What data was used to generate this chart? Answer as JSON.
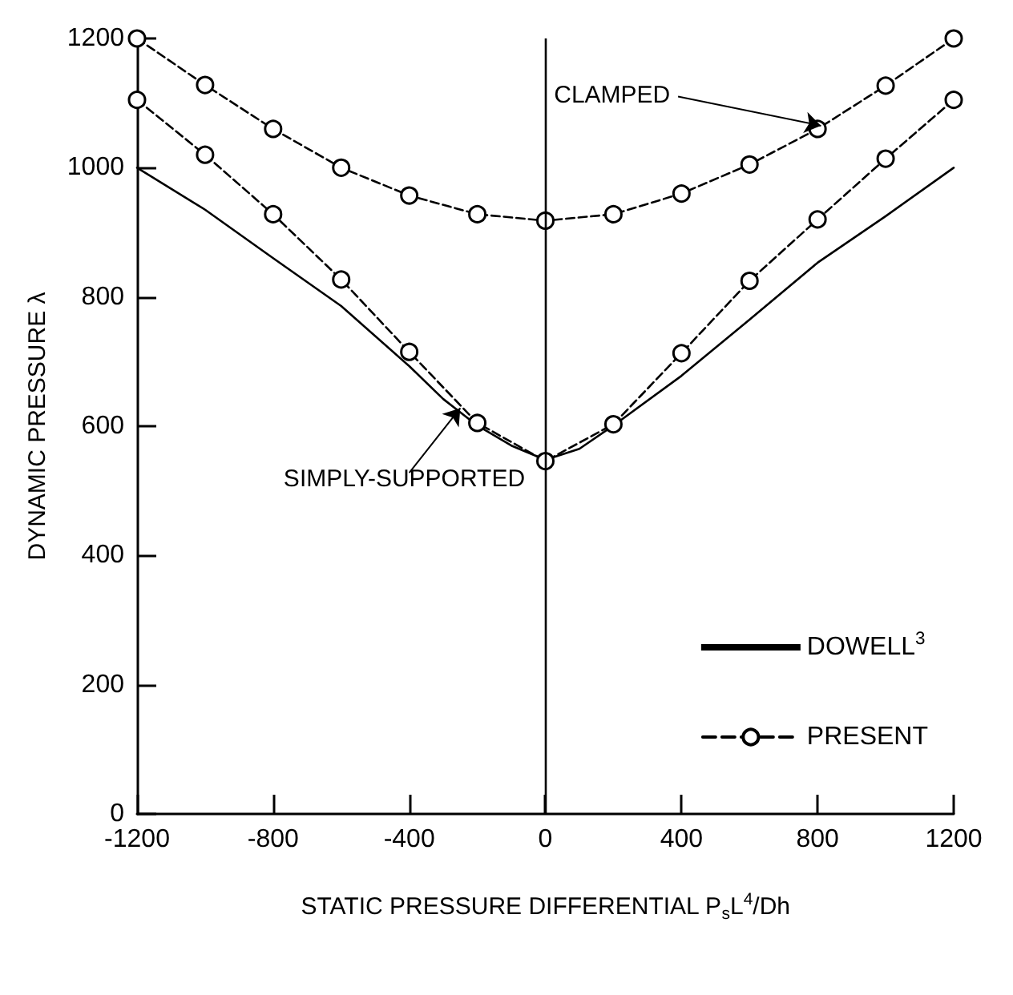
{
  "chart_data": {
    "type": "line",
    "xlabel": "STATIC PRESSURE DIFFERENTIAL P$_{s}$L$^{4}$/Dh",
    "ylabel": "DYNAMIC PRESSURE λ",
    "x": [
      -1200,
      -1000,
      -800,
      -600,
      -400,
      -200,
      0,
      200,
      400,
      600,
      800,
      1000,
      1200
    ],
    "series": [
      {
        "name": "DOWELL$^{3}$",
        "color": "#000000",
        "line_style": "solid",
        "marker": "none",
        "x": [
          -1200,
          -1000,
          -800,
          -600,
          -400,
          -300,
          -200,
          -100,
          0,
          100,
          200,
          400,
          600,
          800,
          1000,
          1200
        ],
        "values": [
          1000,
          935,
          860,
          786,
          693,
          642,
          601,
          570,
          548,
          565,
          601,
          678,
          765,
          853,
          925,
          1000
        ]
      },
      {
        "name": "PRESENT",
        "color": "#000000",
        "line_style": "dashed",
        "marker": "circle",
        "values": [
          1200,
          1128,
          1060,
          1000,
          957,
          928,
          918,
          928,
          960,
          1005,
          1060,
          1127,
          1200
        ]
      },
      {
        "color": "#000000",
        "line_style": "dashed",
        "marker": "circle",
        "values": [
          1105,
          1020,
          928,
          827,
          715,
          605,
          546,
          603,
          713,
          825,
          920,
          1014,
          1105
        ]
      }
    ],
    "xlim": [
      -1200,
      1200
    ],
    "xticks": [
      -1200,
      -800,
      -400,
      0,
      400,
      800,
      1200
    ],
    "ylim": [
      0,
      1200
    ],
    "yticks": [
      0,
      200,
      400,
      600,
      800,
      1000,
      1200
    ],
    "ref_lines": [
      {
        "axis": "x",
        "value": 0,
        "color": "#000000",
        "line_style": "solid"
      }
    ],
    "annotations": [
      {
        "text": "CLAMPED",
        "x": 810,
        "y": 1065
      },
      {
        "text": "SIMPLY-SUPPORTED",
        "x": -250,
        "y": 628
      }
    ],
    "grid": false,
    "legend": "bottom right"
  }
}
